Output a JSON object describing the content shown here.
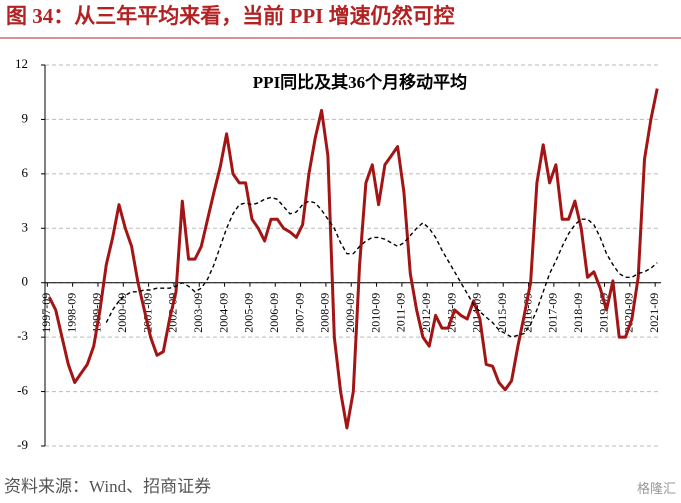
{
  "chart_data": {
    "type": "line",
    "title": "图 34：从三年平均来看，当前 PPI 增速仍然可控",
    "subtitle": "PPI同比及其36个月移动平均",
    "source": "资料来源：Wind、招商证券",
    "watermark": "格隆汇",
    "x": [
      1997.75,
      1998,
      1998.25,
      1998.5,
      1998.75,
      1999,
      1999.25,
      1999.5,
      1999.75,
      2000,
      2000.25,
      2000.5,
      2000.75,
      2001,
      2001.25,
      2001.5,
      2001.75,
      2002,
      2002.25,
      2002.5,
      2002.75,
      2003,
      2003.25,
      2003.5,
      2003.75,
      2004,
      2004.25,
      2004.5,
      2004.75,
      2005,
      2005.25,
      2005.5,
      2005.75,
      2006,
      2006.25,
      2006.5,
      2006.75,
      2007,
      2007.25,
      2007.5,
      2007.75,
      2008,
      2008.25,
      2008.5,
      2008.75,
      2009,
      2009.25,
      2009.5,
      2009.75,
      2010,
      2010.25,
      2010.5,
      2010.75,
      2011,
      2011.25,
      2011.5,
      2011.75,
      2012,
      2012.25,
      2012.5,
      2012.75,
      2013,
      2013.25,
      2013.5,
      2013.75,
      2014,
      2014.25,
      2014.5,
      2014.75,
      2015,
      2015.25,
      2015.5,
      2015.75,
      2016,
      2016.25,
      2016.5,
      2016.75,
      2017,
      2017.25,
      2017.5,
      2017.75,
      2018,
      2018.25,
      2018.5,
      2018.75,
      2019,
      2019.25,
      2019.5,
      2019.75,
      2020,
      2020.25,
      2020.5,
      2020.75,
      2021,
      2021.25,
      2021.5,
      2021.75
    ],
    "series": [
      {
        "color": "#a31515",
        "dash": false,
        "values": [
          -0.8,
          -1.5,
          -3,
          -4.5,
          -5.5,
          -5,
          -4.5,
          -3.5,
          -1.5,
          1,
          2.5,
          4.3,
          3,
          2,
          0,
          -1.5,
          -3,
          -4,
          -3.8,
          -2,
          -0.5,
          4.5,
          1.3,
          1.3,
          2,
          3.5,
          5,
          6.4,
          8.2,
          6,
          5.5,
          5.5,
          3.5,
          3,
          2.3,
          3.5,
          3.5,
          3,
          2.8,
          2.5,
          3.2,
          6,
          8,
          9.5,
          7,
          -3,
          -6,
          -8,
          -6,
          1,
          5.5,
          6.5,
          4.3,
          6.5,
          7,
          7.5,
          5,
          0.5,
          -1.5,
          -3,
          -3.5,
          -1.8,
          -2.5,
          -2.5,
          -1.5,
          -1.8,
          -2,
          -1,
          -2,
          -4.5,
          -4.6,
          -5.5,
          -5.9,
          -5.4,
          -3.5,
          -1.8,
          0,
          5.5,
          7.6,
          5.5,
          6.5,
          3.5,
          3.5,
          4.5,
          3,
          0.3,
          0.6,
          -0.3,
          -1.5,
          0.1,
          -3,
          -3,
          -2,
          0.3,
          6.8,
          9,
          10.7
        ]
      },
      {
        "color": "#000000",
        "dash": true,
        "values": [
          null,
          null,
          null,
          null,
          null,
          null,
          null,
          null,
          null,
          -2.2,
          -1.5,
          -1,
          -0.7,
          -0.5,
          -0.5,
          -0.4,
          -0.4,
          -0.3,
          -0.3,
          -0.3,
          -0.2,
          0,
          -0.2,
          -0.5,
          -0.3,
          0.2,
          1,
          2,
          3,
          3.8,
          4.3,
          4.4,
          4.3,
          4.4,
          4.6,
          4.7,
          4.6,
          4.2,
          3.8,
          3.9,
          4.3,
          4.5,
          4.4,
          4,
          3.5,
          3,
          2.2,
          1.6,
          1.6,
          2,
          2.3,
          2.5,
          2.5,
          2.4,
          2.2,
          2,
          2.2,
          2.6,
          3,
          3.3,
          3,
          2.5,
          1.8,
          1.2,
          0.6,
          0,
          -0.6,
          -1.2,
          -1.6,
          -1.9,
          -2.2,
          -2.6,
          -2.8,
          -3,
          -2.9,
          -2.8,
          -2.3,
          -1.5,
          -0.5,
          0.5,
          1.2,
          2,
          2.7,
          3.2,
          3.5,
          3.5,
          3.2,
          2.5,
          1.6,
          1,
          0.5,
          0.3,
          0.3,
          0.5,
          0.6,
          0.8,
          1.1
        ]
      }
    ],
    "xlim": [
      1997.5,
      2021.9
    ],
    "xticks": [
      {
        "value": 1997.67,
        "label": "1997-09"
      },
      {
        "value": 1998.67,
        "label": "1998-09"
      },
      {
        "value": 1999.67,
        "label": "1999-09"
      },
      {
        "value": 2000.67,
        "label": "2000-09"
      },
      {
        "value": 2001.67,
        "label": "2001-09"
      },
      {
        "value": 2002.67,
        "label": "2002-09"
      },
      {
        "value": 2003.67,
        "label": "2003-09"
      },
      {
        "value": 2004.67,
        "label": "2004-09"
      },
      {
        "value": 2005.67,
        "label": "2005-09"
      },
      {
        "value": 2006.67,
        "label": "2006-09"
      },
      {
        "value": 2007.67,
        "label": "2007-09"
      },
      {
        "value": 2008.67,
        "label": "2008-09"
      },
      {
        "value": 2009.67,
        "label": "2009-09"
      },
      {
        "value": 2010.67,
        "label": "2010-09"
      },
      {
        "value": 2011.67,
        "label": "2011-09"
      },
      {
        "value": 2012.67,
        "label": "2012-09"
      },
      {
        "value": 2013.67,
        "label": "2013-09"
      },
      {
        "value": 2014.67,
        "label": "2014-09"
      },
      {
        "value": 2015.67,
        "label": "2015-09"
      },
      {
        "value": 2016.67,
        "label": "2016-09"
      },
      {
        "value": 2017.67,
        "label": "2017-09"
      },
      {
        "value": 2018.67,
        "label": "2018-09"
      },
      {
        "value": 2019.67,
        "label": "2019-09"
      },
      {
        "value": 2020.67,
        "label": "2020-09"
      },
      {
        "value": 2021.67,
        "label": "2021-09"
      }
    ],
    "ylim": [
      -9,
      12
    ],
    "yticks": [
      -9,
      -6,
      -3,
      0,
      3,
      6,
      9,
      12
    ],
    "grid": true
  }
}
